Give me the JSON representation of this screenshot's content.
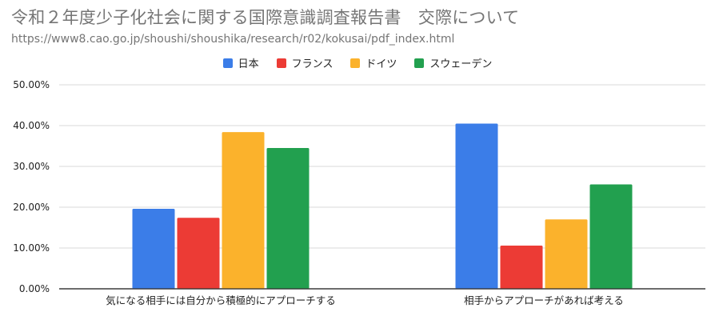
{
  "chart_data": {
    "type": "bar",
    "title": "令和２年度少子化社会に関する国際意識調査報告書　交際について",
    "subtitle": "https://www8.cao.go.jp/shoushi/shoushika/research/r02/kokusai/pdf_index.html",
    "categories": [
      "気になる相手には自分から積極的にアプローチする",
      "相手からアプローチがあれば考える"
    ],
    "series": [
      {
        "name": "日本",
        "color": "#3b7de8",
        "values": [
          19.6,
          40.5
        ]
      },
      {
        "name": "フランス",
        "color": "#ec3b35",
        "values": [
          17.4,
          10.6
        ]
      },
      {
        "name": "ドイツ",
        "color": "#fbb22c",
        "values": [
          38.4,
          17.0
        ]
      },
      {
        "name": "スウェーデン",
        "color": "#22a04f",
        "values": [
          34.5,
          25.6
        ]
      }
    ],
    "ylim": [
      0,
      50
    ],
    "yticks": [
      0,
      10,
      20,
      30,
      40,
      50
    ],
    "ytick_labels": [
      "0.00%",
      "10.00%",
      "20.00%",
      "30.00%",
      "40.00%",
      "50.00%"
    ],
    "xlabel": "",
    "ylabel": "",
    "grid": true,
    "legend_position": "top-center"
  }
}
